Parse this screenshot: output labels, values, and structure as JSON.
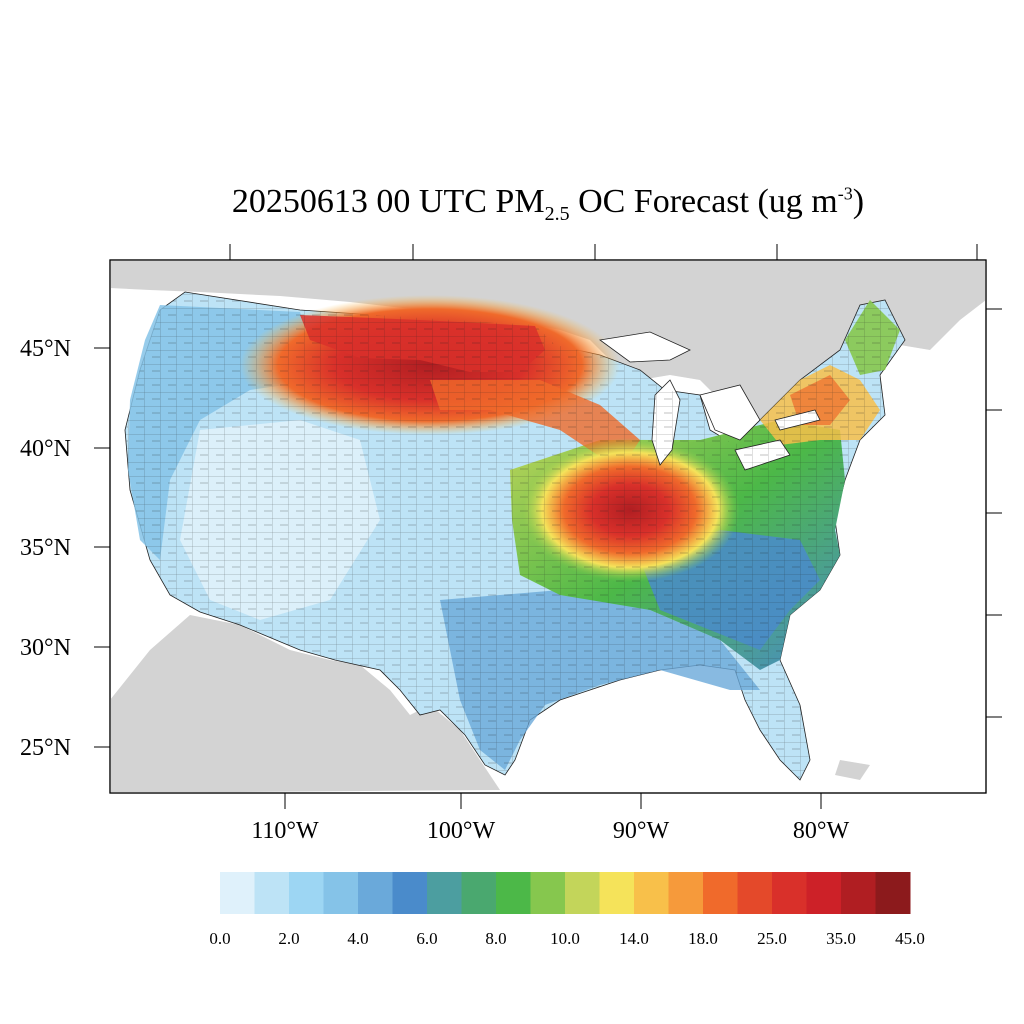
{
  "title": {
    "main": "20250613 00 UTC PM",
    "sub": "2.5",
    "rest": " OC Forecast (ug m",
    "sup": "-3",
    "end": ")"
  },
  "map": {
    "type": "choropleth",
    "region": "Contiguous United States counties",
    "variable": "PM2.5 OC",
    "units": "ug m-3",
    "lat_labels": [
      "25°N",
      "30°N",
      "35°N",
      "40°N",
      "45°N"
    ],
    "lon_labels": [
      "110°W",
      "100°W",
      "90°W",
      "80°W"
    ],
    "land_outside_color": "#d3d3d3",
    "ocean_color": "#ffffff"
  },
  "colorbar": {
    "labels": [
      "0.0",
      "2.0",
      "4.0",
      "6.0",
      "8.0",
      "10.0",
      "14.0",
      "18.0",
      "25.0",
      "35.0",
      "45.0"
    ],
    "colors": [
      "#dff1fb",
      "#bde3f6",
      "#9dd6f3",
      "#85c3e8",
      "#6aa9da",
      "#4a8bcb",
      "#4c9ea0",
      "#4aa86f",
      "#4cb848",
      "#86c74e",
      "#c3d55a",
      "#f5e35a",
      "#f8c04a",
      "#f69a3b",
      "#f06a2b",
      "#e4492a",
      "#d9302a",
      "#cd2128",
      "#b01e22",
      "#8c1a1c"
    ]
  }
}
